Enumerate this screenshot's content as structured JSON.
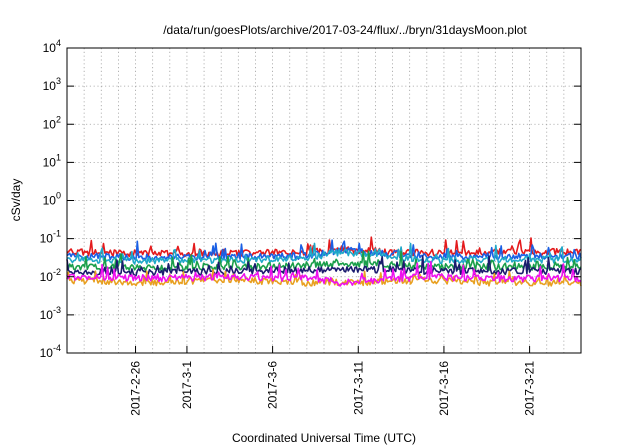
{
  "chart_data": {
    "type": "line",
    "title": "/data/run/goesPlots/archive/2017-03-24/flux/../bryn/31daysMoon.plot",
    "xlabel": "Coordinated Universal Time (UTC)",
    "ylabel": "cSv/day",
    "yscale": "log",
    "ylim": [
      0.0001,
      10000
    ],
    "y_ticks": [
      {
        "value": 0.0001,
        "base": "10",
        "exp": "-4"
      },
      {
        "value": 0.001,
        "base": "10",
        "exp": "-3"
      },
      {
        "value": 0.01,
        "base": "10",
        "exp": "-2"
      },
      {
        "value": 0.1,
        "base": "10",
        "exp": "-1"
      },
      {
        "value": 1,
        "base": "10",
        "exp": "0"
      },
      {
        "value": 10,
        "base": "10",
        "exp": "1"
      },
      {
        "value": 100,
        "base": "10",
        "exp": "2"
      },
      {
        "value": 1000,
        "base": "10",
        "exp": "3"
      },
      {
        "value": 10000,
        "base": "10",
        "exp": "4"
      }
    ],
    "xlim": [
      "2017-02-22",
      "2017-03-24"
    ],
    "x_ticks": [
      "2017-2-26",
      "2017-3-1",
      "2017-3-6",
      "2017-3-11",
      "2017-3-16",
      "2017-3-21"
    ],
    "grid": true,
    "legend": "none",
    "series": [
      {
        "color": "#e41a1c",
        "points": [
          [
            "2017-02-22",
            0.045
          ],
          [
            "2017-02-27",
            0.04
          ],
          [
            "2017-03-04",
            0.042
          ],
          [
            "2017-03-08",
            0.045
          ],
          [
            "2017-03-10",
            0.05
          ],
          [
            "2017-03-15",
            0.042
          ],
          [
            "2017-03-19",
            0.045
          ],
          [
            "2017-03-24",
            0.045
          ]
        ]
      },
      {
        "color": "#1a5fe4",
        "points": [
          [
            "2017-02-22",
            0.035
          ],
          [
            "2017-02-27",
            0.032
          ],
          [
            "2017-03-04",
            0.033
          ],
          [
            "2017-03-08",
            0.035
          ],
          [
            "2017-03-10",
            0.05
          ],
          [
            "2017-03-15",
            0.033
          ],
          [
            "2017-03-19",
            0.035
          ],
          [
            "2017-03-24",
            0.035
          ]
        ]
      },
      {
        "color": "#1fa8c8",
        "points": [
          [
            "2017-02-22",
            0.028
          ],
          [
            "2017-02-27",
            0.026
          ],
          [
            "2017-03-04",
            0.027
          ],
          [
            "2017-03-08",
            0.03
          ],
          [
            "2017-03-10",
            0.045
          ],
          [
            "2017-03-15",
            0.027
          ],
          [
            "2017-03-19",
            0.028
          ],
          [
            "2017-03-24",
            0.028
          ]
        ]
      },
      {
        "color": "#1a9f4a",
        "points": [
          [
            "2017-02-22",
            0.018
          ],
          [
            "2017-02-27",
            0.017
          ],
          [
            "2017-03-04",
            0.018
          ],
          [
            "2017-03-08",
            0.02
          ],
          [
            "2017-03-10",
            0.022
          ],
          [
            "2017-03-15",
            0.018
          ],
          [
            "2017-03-19",
            0.018
          ],
          [
            "2017-03-24",
            0.018
          ]
        ]
      },
      {
        "color": "#1b1b6e",
        "points": [
          [
            "2017-02-22",
            0.014
          ],
          [
            "2017-02-27",
            0.013
          ],
          [
            "2017-03-04",
            0.014
          ],
          [
            "2017-03-08",
            0.015
          ],
          [
            "2017-03-10",
            0.016
          ],
          [
            "2017-03-15",
            0.014
          ],
          [
            "2017-03-19",
            0.014
          ],
          [
            "2017-03-24",
            0.014
          ]
        ]
      },
      {
        "color": "#e8a020",
        "points": [
          [
            "2017-02-22",
            0.008
          ],
          [
            "2017-02-27",
            0.007
          ],
          [
            "2017-03-04",
            0.008
          ],
          [
            "2017-03-08",
            0.007
          ],
          [
            "2017-03-10",
            0.007
          ],
          [
            "2017-03-15",
            0.008
          ],
          [
            "2017-03-19",
            0.007
          ],
          [
            "2017-03-24",
            0.007
          ]
        ]
      },
      {
        "color": "#ee10ee",
        "points": [
          [
            "2017-02-22",
            0.01
          ],
          [
            "2017-02-27",
            0.009
          ],
          [
            "2017-03-04",
            0.01
          ],
          [
            "2017-03-08",
            0.009
          ],
          [
            "2017-03-10",
            0.007
          ],
          [
            "2017-03-15",
            0.01
          ],
          [
            "2017-03-19",
            0.009
          ],
          [
            "2017-03-24",
            0.009
          ]
        ]
      }
    ]
  }
}
